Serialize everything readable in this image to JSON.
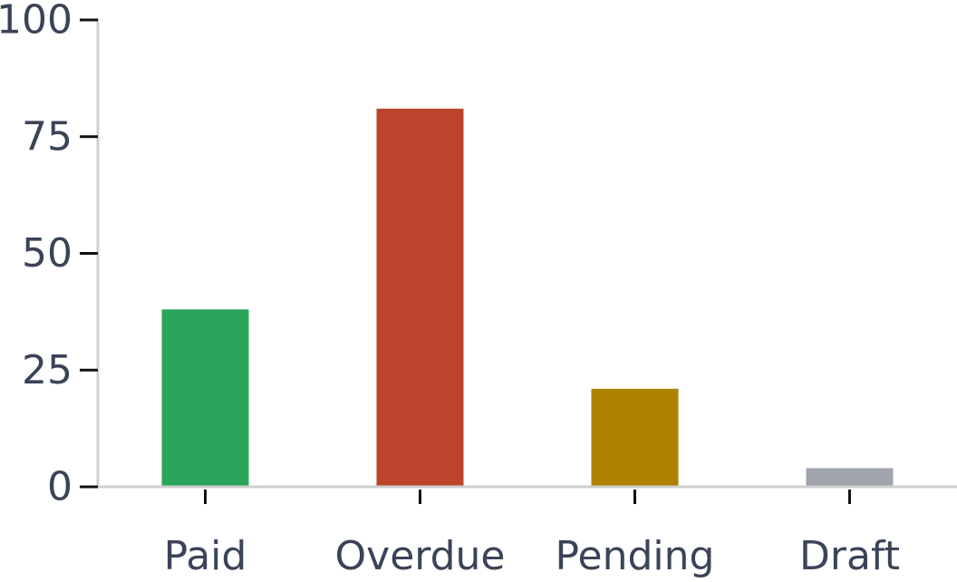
{
  "chart_data": {
    "type": "bar",
    "title": "",
    "xlabel": "",
    "ylabel": "",
    "categories": [
      "Paid",
      "Overdue",
      "Pending",
      "Draft"
    ],
    "values": [
      38,
      81,
      21,
      4
    ],
    "colors": [
      "#2ca35a",
      "#bc442b",
      "#ae8200",
      "#a0a4ad"
    ],
    "ylim": [
      0,
      100
    ],
    "yticks": [
      0,
      25,
      50,
      75,
      100
    ],
    "ytick_labels": [
      "0",
      "25",
      "50",
      "75",
      "100"
    ],
    "grid": false,
    "legend": "none"
  }
}
